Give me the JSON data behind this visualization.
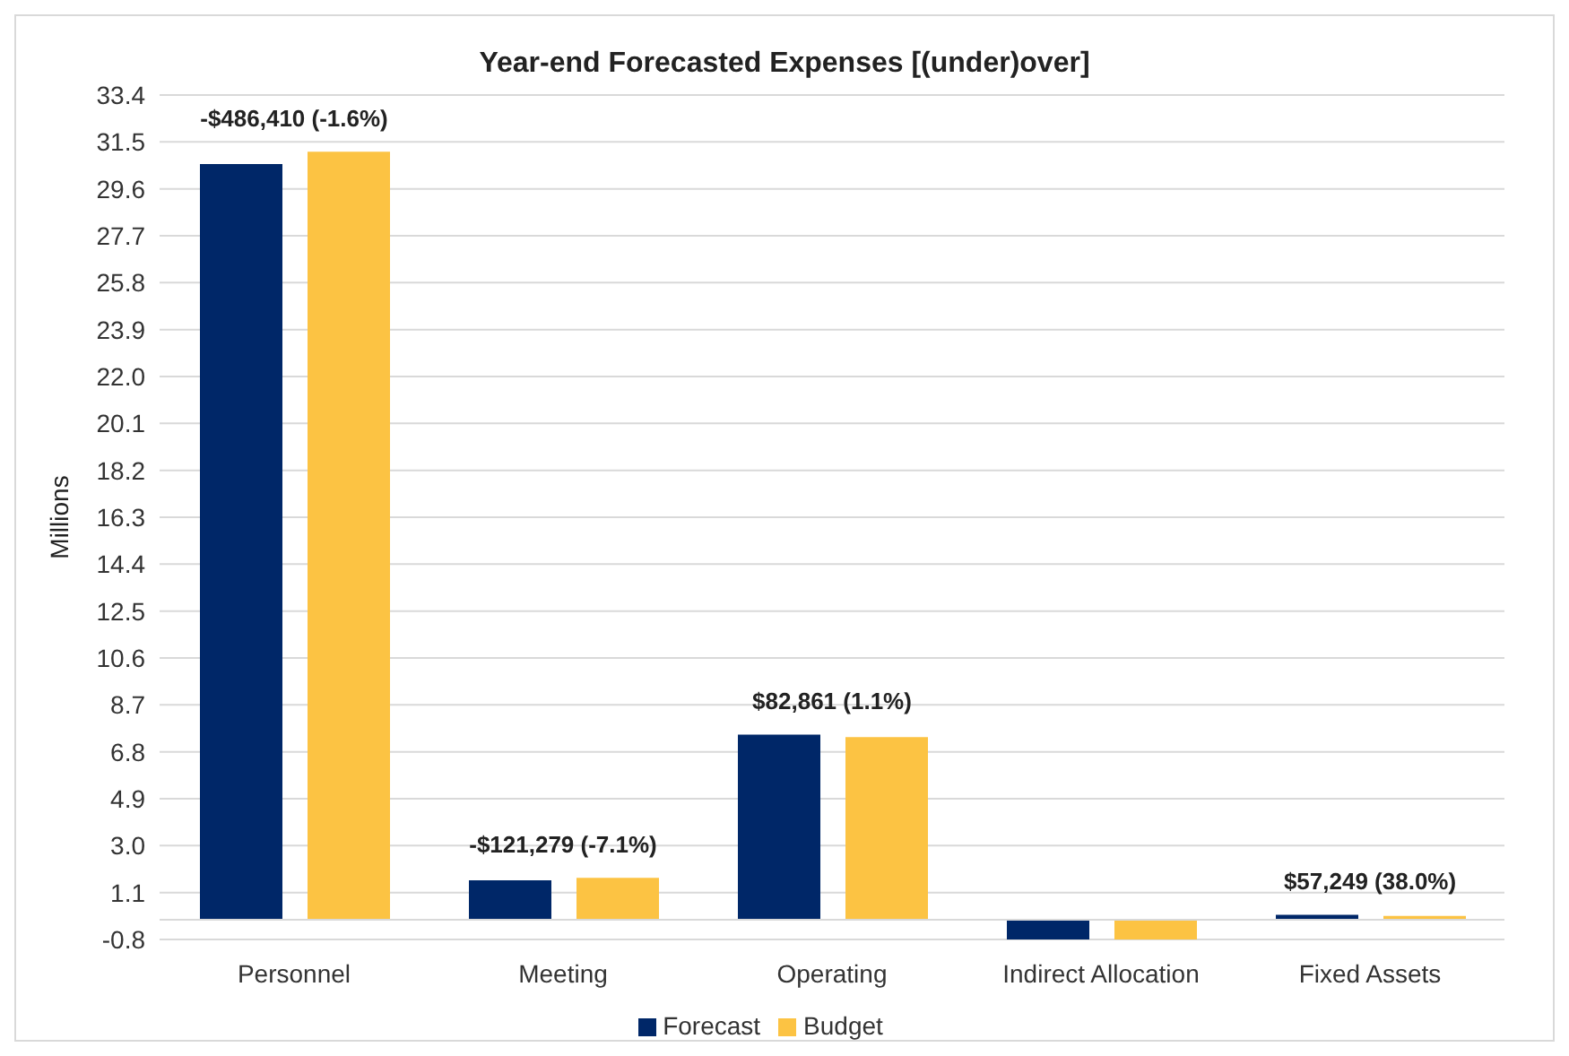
{
  "chart_data": {
    "type": "bar",
    "title": "Year-end Forecasted Expenses [(under)over]",
    "ylabel": "Millions",
    "categories": [
      "Personnel",
      "Meeting",
      "Operating",
      "Indirect Allocation",
      "Fixed Assets"
    ],
    "series": [
      {
        "name": "Forecast",
        "color": "#002768",
        "values": [
          30.6,
          1.6,
          7.5,
          -0.8,
          0.2
        ]
      },
      {
        "name": "Budget",
        "color": "#fcc343",
        "values": [
          31.1,
          1.7,
          7.4,
          -0.8,
          0.15
        ]
      }
    ],
    "ylim": [
      -0.8,
      33.4
    ],
    "yticks": [
      -0.8,
      1.1,
      {
        "value": 3,
        "label": "3.0"
      },
      4.9,
      6.8,
      8.7,
      10.6,
      12.5,
      14.4,
      16.3,
      18.2,
      20.1,
      {
        "value": 22,
        "label": "22.0"
      },
      23.9,
      25.8,
      27.7,
      29.6,
      31.5,
      33.4
    ],
    "grid": "y",
    "legend": "bottom",
    "annotations": [
      "-$486,410 (-1.6%)",
      "-$121,279 (-7.1%)",
      "$82,861 (1.1%)",
      "$57,249 (38.0%)"
    ]
  }
}
